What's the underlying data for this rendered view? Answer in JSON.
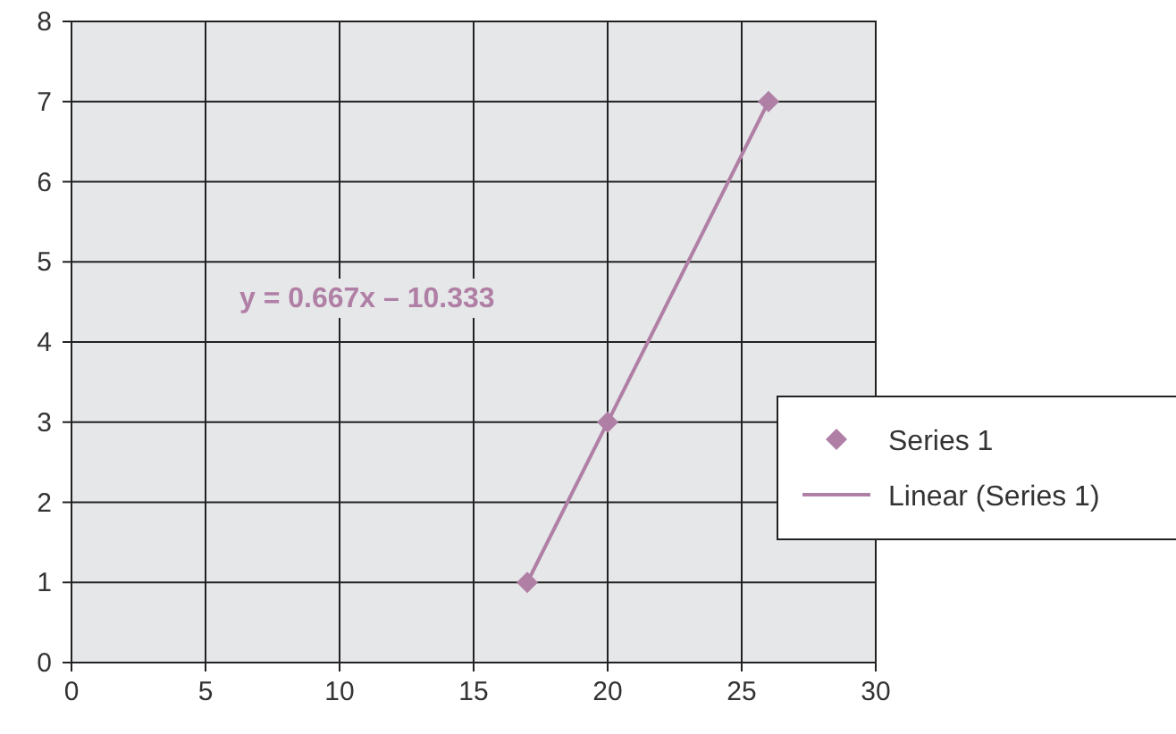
{
  "chart_data": {
    "type": "scatter",
    "x": [
      17,
      20,
      26
    ],
    "xlim": [
      0,
      30
    ],
    "xticks": [
      0,
      5,
      10,
      15,
      20,
      25,
      30
    ],
    "ylim": [
      0,
      8
    ],
    "yticks": [
      0,
      1,
      2,
      3,
      4,
      5,
      6,
      7,
      8
    ],
    "grid": true,
    "legend": "right",
    "marker": "diamond",
    "series": [
      {
        "name": "Series 1",
        "color": "#b07fa5",
        "values": [
          1,
          3,
          7
        ]
      },
      {
        "name": "Linear (Series 1)",
        "type": "line",
        "color": "#b07fa5",
        "x": [
          17,
          26
        ],
        "values": [
          1,
          7
        ],
        "line_style": "solid",
        "marker": "none"
      }
    ],
    "annotations": [
      "y = 0.667x – 10.333"
    ]
  }
}
